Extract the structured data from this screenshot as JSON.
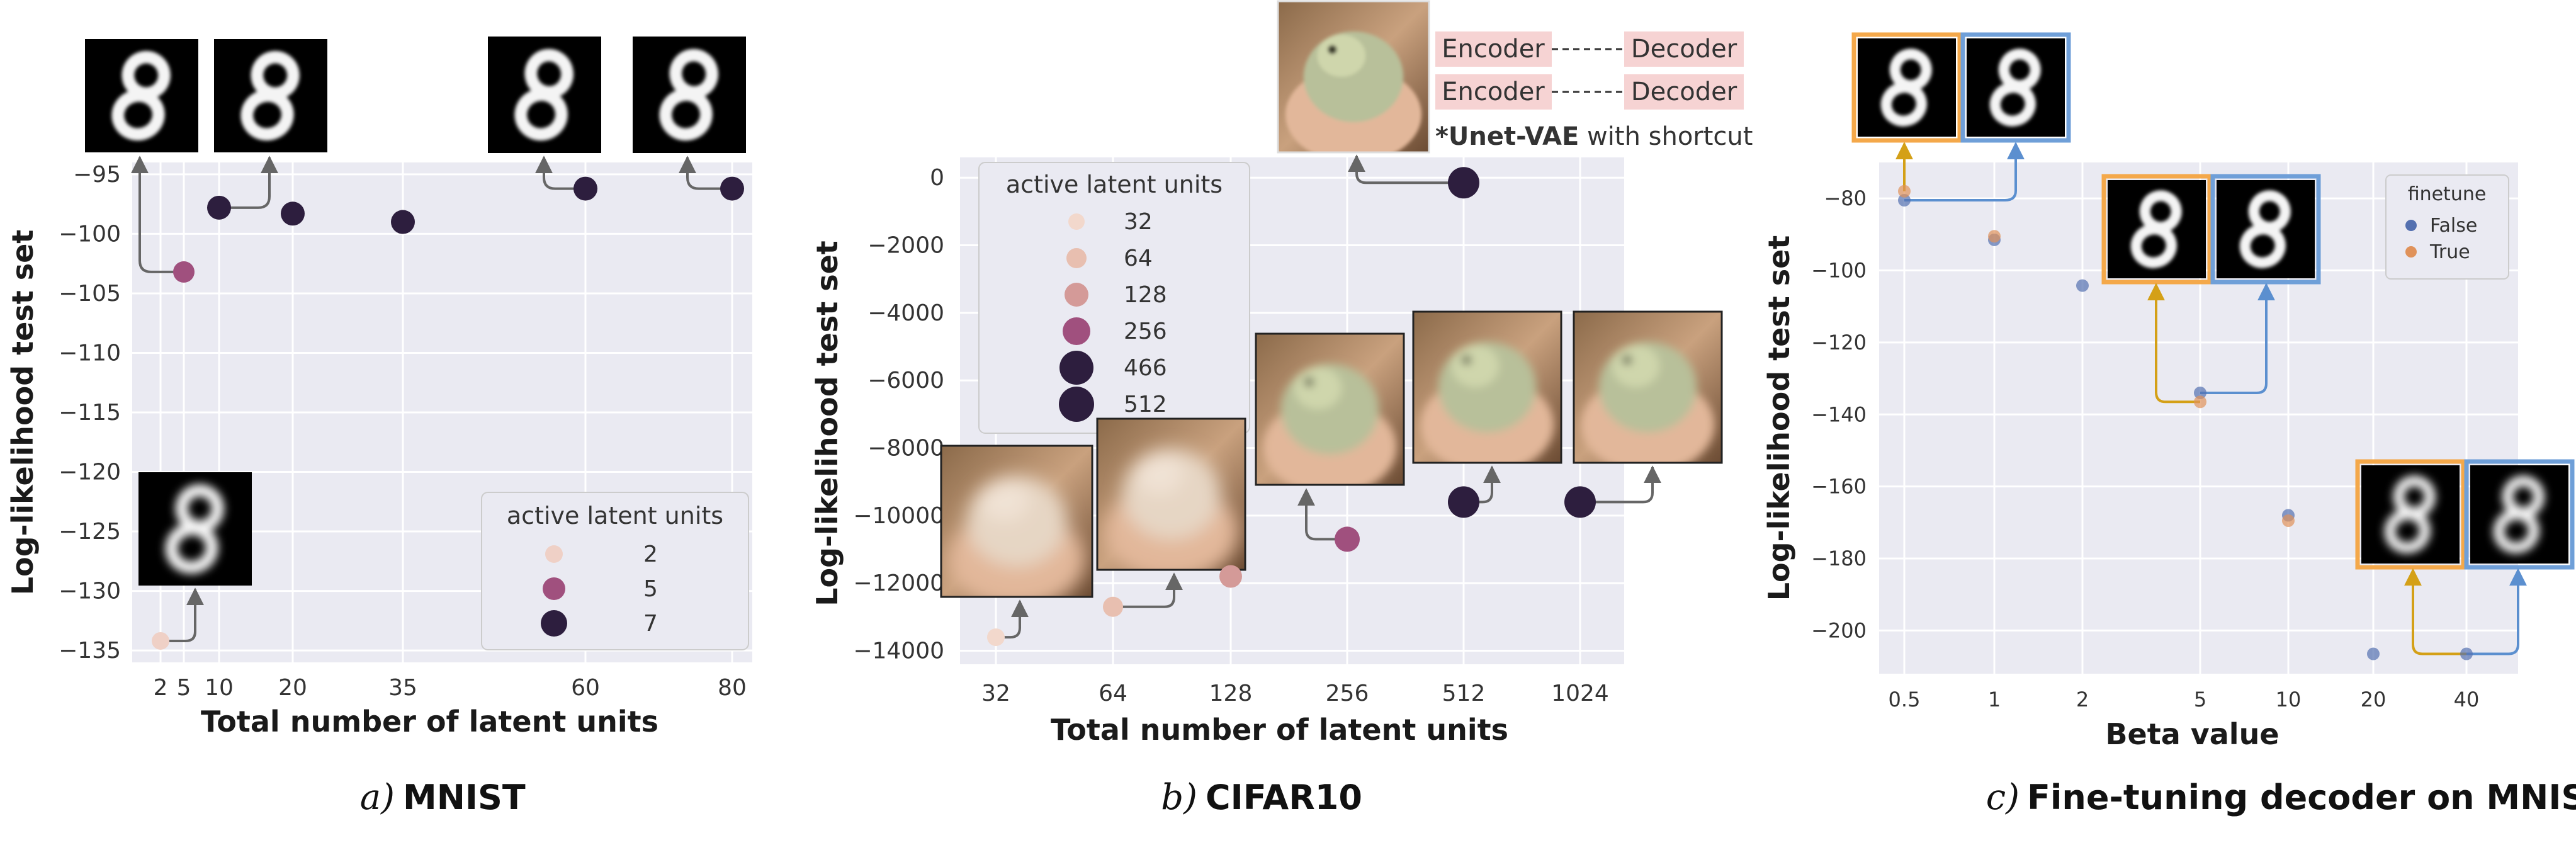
{
  "chart_data": [
    {
      "type": "scatter",
      "panel": "a",
      "caption": {
        "letter": "a)",
        "name": "MNIST"
      },
      "xlabel": "Total number of latent units",
      "ylabel": "Log-likelihood test set",
      "x_ticks": [
        2,
        5,
        10,
        20,
        35,
        60,
        80
      ],
      "y_ticks": [
        -95,
        -100,
        -105,
        -110,
        -115,
        -120,
        -125,
        -130,
        -135
      ],
      "ylim": [
        -136,
        -94
      ],
      "legend": {
        "title": "active latent units",
        "position": "lower-right",
        "entries": [
          "2",
          "5",
          "7"
        ]
      },
      "colors": {
        "2": "#efd0c6",
        "5": "#a0507e",
        "7": "#2d1e3e"
      },
      "points": [
        {
          "x": 2,
          "y": -134.2,
          "active": 2
        },
        {
          "x": 5,
          "y": -103.2,
          "active": 5
        },
        {
          "x": 10,
          "y": -97.8,
          "active": 7
        },
        {
          "x": 20,
          "y": -98.3,
          "active": 7
        },
        {
          "x": 35,
          "y": -99.0,
          "active": 7
        },
        {
          "x": 60,
          "y": -96.2,
          "active": 7
        },
        {
          "x": 80,
          "y": -96.2,
          "active": 7
        }
      ]
    },
    {
      "type": "scatter",
      "panel": "b",
      "caption": {
        "letter": "b)",
        "name": "CIFAR10"
      },
      "xlabel": "Total number of latent units",
      "ylabel": "Log-likelihood test set",
      "x_ticks": [
        32,
        64,
        128,
        256,
        512,
        1024
      ],
      "y_ticks": [
        0,
        -2000,
        -4000,
        -6000,
        -8000,
        -10000,
        -12000,
        -14000
      ],
      "ylim": [
        -14400,
        600
      ],
      "legend": {
        "title": "active latent units",
        "position": "upper-left",
        "entries": [
          "32",
          "64",
          "128",
          "256",
          "466",
          "512"
        ]
      },
      "colors": {
        "32": "#f2d8cc",
        "64": "#e8bfb0",
        "128": "#d49a98",
        "256": "#a0507e",
        "466": "#2d1e3e",
        "512": "#2d1e3e"
      },
      "points": [
        {
          "x": 32,
          "y": -13600,
          "active": 32
        },
        {
          "x": 64,
          "y": -12700,
          "active": 64
        },
        {
          "x": 128,
          "y": -11800,
          "active": 128
        },
        {
          "x": 256,
          "y": -10700,
          "active": 256
        },
        {
          "x": 512,
          "y": -9600,
          "active": 466
        },
        {
          "x": 1024,
          "y": -9600,
          "active": 466
        },
        {
          "x": 512,
          "y": -150,
          "active": 512
        }
      ],
      "annotation": {
        "rows": [
          [
            "Encoder",
            "Decoder"
          ],
          [
            "Encoder",
            "Decoder"
          ]
        ],
        "note_bold": "*Unet-VAE",
        "note_rest": " with shortcut"
      }
    },
    {
      "type": "scatter",
      "panel": "c",
      "caption": {
        "letter": "c)",
        "name": "Fine-tuning decoder on MNIST"
      },
      "xlabel": "Beta value",
      "ylabel": "Log-likelihood test set",
      "x_ticks": [
        "0.5",
        "1",
        "2",
        "5",
        "10",
        "20",
        "40"
      ],
      "y_ticks": [
        -80,
        -100,
        -120,
        -140,
        -160,
        -180,
        -200
      ],
      "ylim": [
        -212,
        -70
      ],
      "legend": {
        "title": "finetune",
        "position": "upper-right",
        "entries": [
          "False",
          "True"
        ]
      },
      "colors": {
        "False": "#5470b0",
        "True": "#e0925a"
      },
      "series": [
        {
          "name": "False",
          "x": [
            "0.5",
            "1",
            "2",
            "5",
            "10",
            "20",
            "40"
          ],
          "values": [
            -80.5,
            -91.5,
            -104.2,
            -134,
            -168,
            -206.5,
            -206.5
          ]
        },
        {
          "name": "True",
          "x": [
            "0.5",
            "1",
            "5",
            "10"
          ],
          "values": [
            -78,
            -90.5,
            -136.5,
            -169.5
          ]
        }
      ]
    }
  ]
}
